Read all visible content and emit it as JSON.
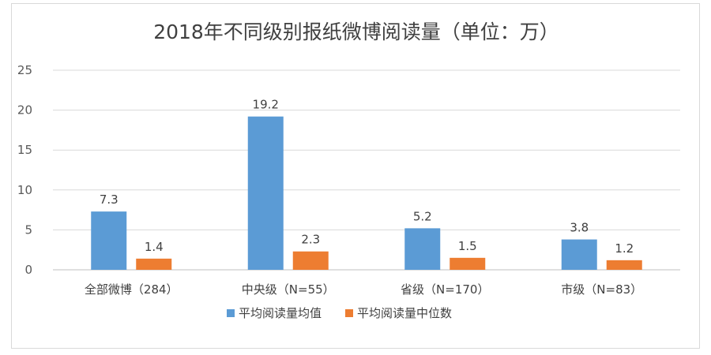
{
  "chart_data": {
    "type": "bar",
    "title": "2018年不同级别报纸微博阅读量（单位：万）",
    "xlabel": "",
    "ylabel": "",
    "ylim": [
      0,
      25
    ],
    "yticks": [
      0,
      5,
      10,
      15,
      20,
      25
    ],
    "grid": true,
    "legend_position": "bottom",
    "categories": [
      "全部微博（284）",
      "中央级（N=55）",
      "省级（N=170）",
      "市级（N=83）"
    ],
    "series": [
      {
        "name": "平均阅读量均值",
        "color": "#5b9bd5",
        "values": [
          7.3,
          19.2,
          5.2,
          3.8
        ]
      },
      {
        "name": "平均阅读量中位数",
        "color": "#ed7d31",
        "values": [
          1.4,
          2.3,
          1.5,
          1.2
        ]
      }
    ]
  }
}
